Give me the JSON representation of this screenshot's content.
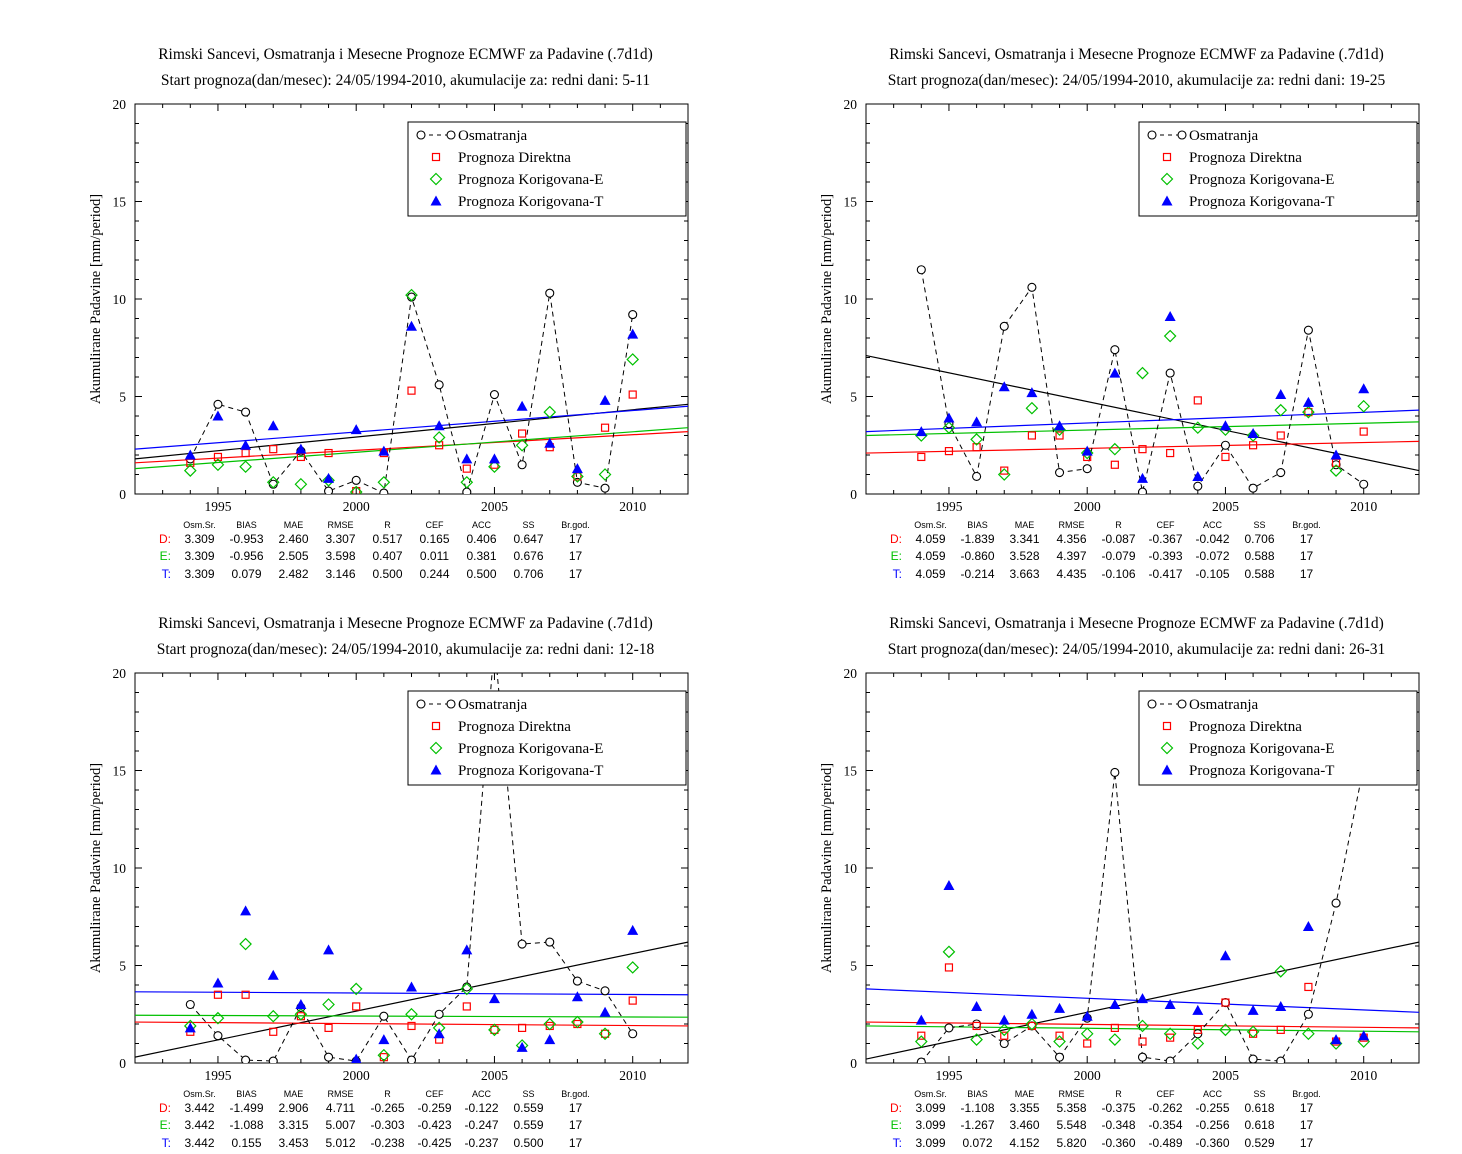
{
  "app": {
    "background": "#ffffff"
  },
  "palette": {
    "osmatranja": "#000000",
    "direktna": "#FF0000",
    "korigovana_e": "#00C000",
    "korigovana_t": "#0000FF"
  },
  "chart_data": [
    {
      "type": "scatter",
      "title": "Rimski Sancevi, Osmatranja i Mesecne Prognoze ECMWF za Padavine (.7d1d)",
      "subtitle": "Start prognoza(dan/mesec): 24/05/1994-2010, akumulacije za: redni dani: 5-11",
      "ylabel": "Akumulirane Padavine [mm/period]",
      "ylim": [
        0,
        20
      ],
      "xlim": [
        1992,
        2012
      ],
      "yticks": [
        0,
        5,
        10,
        15,
        20
      ],
      "xticks": [
        1995,
        2000,
        2005,
        2010
      ],
      "grid": false,
      "legend_position": "top-right-inside",
      "x": [
        1994,
        1995,
        1996,
        1997,
        1998,
        1999,
        2000,
        2001,
        2002,
        2003,
        2004,
        2005,
        2006,
        2007,
        2008,
        2009,
        2010
      ],
      "series": [
        {
          "name": "Osmatranja",
          "color": "#000000",
          "marker": "circle-open",
          "line": "dashed",
          "values": [
            1.8,
            4.6,
            4.2,
            0.5,
            2.2,
            0.15,
            0.7,
            0.05,
            10.1,
            5.6,
            0.1,
            5.1,
            1.5,
            10.3,
            0.6,
            0.3,
            9.2
          ]
        },
        {
          "name": "Prognoza Direktna",
          "color": "#FF0000",
          "marker": "square-open",
          "line": "none",
          "values": [
            1.6,
            1.9,
            2.1,
            2.3,
            1.9,
            2.1,
            0.15,
            2.1,
            5.3,
            2.5,
            1.3,
            1.5,
            3.1,
            2.4,
            0.9,
            3.4,
            5.1
          ]
        },
        {
          "name": "Prognoza Korigovana-E",
          "color": "#00C000",
          "marker": "diamond-open",
          "line": "none",
          "values": [
            1.2,
            1.5,
            1.4,
            0.6,
            0.5,
            0.7,
            0.1,
            0.6,
            10.2,
            2.9,
            0.6,
            1.4,
            2.5,
            4.2,
            0.9,
            1.0,
            6.9
          ]
        },
        {
          "name": "Prognoza Korigovana-T",
          "color": "#0000FF",
          "marker": "triangle-filled",
          "line": "none",
          "values": [
            2.0,
            4.0,
            2.5,
            3.5,
            2.3,
            0.8,
            3.3,
            2.2,
            8.6,
            3.5,
            1.8,
            1.8,
            4.5,
            2.6,
            1.3,
            4.8,
            8.2
          ]
        }
      ],
      "trend_lines": [
        {
          "name": "osmatranja-trend",
          "color": "#000000",
          "y_start": 1.8,
          "y_end": 4.6
        },
        {
          "name": "direktna-trend",
          "color": "#FF0000",
          "y_start": 1.6,
          "y_end": 3.2
        },
        {
          "name": "korigovana-e-trend",
          "color": "#00C000",
          "y_start": 1.3,
          "y_end": 3.4
        },
        {
          "name": "korigovana-t-trend",
          "color": "#0000FF",
          "y_start": 2.3,
          "y_end": 4.5
        }
      ],
      "stats": {
        "header": [
          "Osm.Sr.",
          "BIAS",
          "MAE",
          "RMSE",
          "R",
          "CEF",
          "ACC",
          "SS",
          "Br.god."
        ],
        "rows": [
          {
            "label": "D:",
            "color": "#FF0000",
            "values": [
              "3.309",
              "-0.953",
              "2.460",
              "3.307",
              "0.517",
              "0.165",
              "0.406",
              "0.647",
              "17"
            ]
          },
          {
            "label": "E:",
            "color": "#00C000",
            "values": [
              "3.309",
              "-0.956",
              "2.505",
              "3.598",
              "0.407",
              "0.011",
              "0.381",
              "0.676",
              "17"
            ]
          },
          {
            "label": "T:",
            "color": "#0000FF",
            "values": [
              "3.309",
              "0.079",
              "2.482",
              "3.146",
              "0.500",
              "0.244",
              "0.500",
              "0.706",
              "17"
            ]
          }
        ]
      }
    },
    {
      "type": "scatter",
      "title": "Rimski Sancevi, Osmatranja i Mesecne Prognoze ECMWF za Padavine (.7d1d)",
      "subtitle": "Start prognoza(dan/mesec): 24/05/1994-2010, akumulacije za: redni dani: 19-25",
      "ylabel": "Akumulirane Padavine [mm/period]",
      "ylim": [
        0,
        20
      ],
      "xlim": [
        1992,
        2012
      ],
      "yticks": [
        0,
        5,
        10,
        15,
        20
      ],
      "xticks": [
        1995,
        2000,
        2005,
        2010
      ],
      "grid": false,
      "legend_position": "top-right-inside",
      "x": [
        1994,
        1995,
        1996,
        1997,
        1998,
        1999,
        2000,
        2001,
        2002,
        2003,
        2004,
        2005,
        2006,
        2007,
        2008,
        2009,
        2010
      ],
      "series": [
        {
          "name": "Osmatranja",
          "color": "#000000",
          "marker": "circle-open",
          "line": "dashed",
          "values": [
            11.5,
            3.6,
            0.9,
            8.6,
            10.6,
            1.1,
            1.3,
            7.4,
            0.1,
            6.2,
            0.4,
            2.5,
            0.3,
            1.1,
            8.4,
            1.5,
            0.5
          ]
        },
        {
          "name": "Prognoza Direktna",
          "color": "#FF0000",
          "marker": "square-open",
          "line": "none",
          "values": [
            1.9,
            2.2,
            2.4,
            1.2,
            3.0,
            3.0,
            1.9,
            1.5,
            2.3,
            2.1,
            4.8,
            1.9,
            2.5,
            3.0,
            4.2,
            1.6,
            3.2
          ]
        },
        {
          "name": "Prognoza Korigovana-E",
          "color": "#00C000",
          "marker": "diamond-open",
          "line": "none",
          "values": [
            3.0,
            3.4,
            2.8,
            1.0,
            4.4,
            3.3,
            2.1,
            2.3,
            6.2,
            8.1,
            3.4,
            3.3,
            3.0,
            4.3,
            4.2,
            1.2,
            4.5
          ]
        },
        {
          "name": "Prognoza Korigovana-T",
          "color": "#0000FF",
          "marker": "triangle-filled",
          "line": "none",
          "values": [
            3.2,
            3.9,
            3.7,
            5.5,
            5.2,
            3.5,
            2.2,
            6.2,
            0.8,
            9.1,
            0.9,
            3.5,
            3.1,
            5.1,
            4.7,
            2.0,
            5.4
          ]
        }
      ],
      "trend_lines": [
        {
          "name": "osmatranja-trend",
          "color": "#000000",
          "y_start": 7.1,
          "y_end": 1.2
        },
        {
          "name": "direktna-trend",
          "color": "#FF0000",
          "y_start": 2.1,
          "y_end": 2.7
        },
        {
          "name": "korigovana-e-trend",
          "color": "#00C000",
          "y_start": 3.0,
          "y_end": 3.7
        },
        {
          "name": "korigovana-t-trend",
          "color": "#0000FF",
          "y_start": 3.2,
          "y_end": 4.3
        }
      ],
      "stats": {
        "header": [
          "Osm.Sr.",
          "BIAS",
          "MAE",
          "RMSE",
          "R",
          "CEF",
          "ACC",
          "SS",
          "Br.god."
        ],
        "rows": [
          {
            "label": "D:",
            "color": "#FF0000",
            "values": [
              "4.059",
              "-1.839",
              "3.341",
              "4.356",
              "-0.087",
              "-0.367",
              "-0.042",
              "0.706",
              "17"
            ]
          },
          {
            "label": "E:",
            "color": "#00C000",
            "values": [
              "4.059",
              "-0.860",
              "3.528",
              "4.397",
              "-0.079",
              "-0.393",
              "-0.072",
              "0.588",
              "17"
            ]
          },
          {
            "label": "T:",
            "color": "#0000FF",
            "values": [
              "4.059",
              "-0.214",
              "3.663",
              "4.435",
              "-0.106",
              "-0.417",
              "-0.105",
              "0.588",
              "17"
            ]
          }
        ]
      }
    },
    {
      "type": "scatter",
      "title": "Rimski Sancevi, Osmatranja i Mesecne Prognoze ECMWF za Padavine (.7d1d)",
      "subtitle": "Start prognoza(dan/mesec): 24/05/1994-2010, akumulacije za: redni dani: 12-18",
      "ylabel": "Akumulirane Padavine [mm/period]",
      "ylim": [
        0,
        20
      ],
      "xlim": [
        1992,
        2012
      ],
      "yticks": [
        0,
        5,
        10,
        15,
        20
      ],
      "xticks": [
        1995,
        2000,
        2005,
        2010
      ],
      "grid": false,
      "legend_position": "top-right-inside",
      "x": [
        1994,
        1995,
        1996,
        1997,
        1998,
        1999,
        2000,
        2001,
        2002,
        2003,
        2004,
        2005,
        2006,
        2007,
        2008,
        2009,
        2010
      ],
      "series": [
        {
          "name": "Osmatranja",
          "color": "#000000",
          "marker": "circle-open",
          "line": "dashed",
          "values": [
            3.0,
            1.4,
            0.15,
            0.1,
            2.85,
            0.3,
            0.1,
            2.4,
            0.15,
            2.5,
            3.9,
            21.5,
            6.1,
            6.2,
            4.2,
            3.7,
            1.5
          ]
        },
        {
          "name": "Prognoza Direktna",
          "color": "#FF0000",
          "marker": "square-open",
          "line": "none",
          "values": [
            1.6,
            3.5,
            3.5,
            1.6,
            2.4,
            1.8,
            2.9,
            0.3,
            1.9,
            1.2,
            2.9,
            1.7,
            1.8,
            1.9,
            2.0,
            1.5,
            3.2
          ]
        },
        {
          "name": "Prognoza Korigovana-E",
          "color": "#00C000",
          "marker": "diamond-open",
          "line": "none",
          "values": [
            1.9,
            2.3,
            6.1,
            2.4,
            2.5,
            3.0,
            3.8,
            0.4,
            2.5,
            1.8,
            3.8,
            1.7,
            0.9,
            2.0,
            2.1,
            1.5,
            4.9
          ]
        },
        {
          "name": "Prognoza Korigovana-T",
          "color": "#0000FF",
          "marker": "triangle-filled",
          "line": "none",
          "values": [
            1.8,
            4.1,
            7.8,
            4.5,
            3.0,
            5.8,
            0.2,
            1.2,
            3.9,
            1.5,
            5.8,
            3.3,
            0.8,
            1.2,
            3.4,
            2.6,
            6.8
          ]
        }
      ],
      "trend_lines": [
        {
          "name": "osmatranja-trend",
          "color": "#000000",
          "y_start": 0.3,
          "y_end": 6.2
        },
        {
          "name": "direktna-trend",
          "color": "#FF0000",
          "y_start": 2.1,
          "y_end": 1.9
        },
        {
          "name": "korigovana-e-trend",
          "color": "#00C000",
          "y_start": 2.45,
          "y_end": 2.35
        },
        {
          "name": "korigovana-t-trend",
          "color": "#0000FF",
          "y_start": 3.65,
          "y_end": 3.5
        }
      ],
      "stats": {
        "header": [
          "Osm.Sr.",
          "BIAS",
          "MAE",
          "RMSE",
          "R",
          "CEF",
          "ACC",
          "SS",
          "Br.god."
        ],
        "rows": [
          {
            "label": "D:",
            "color": "#FF0000",
            "values": [
              "3.442",
              "-1.499",
              "2.906",
              "4.711",
              "-0.265",
              "-0.259",
              "-0.122",
              "0.559",
              "17"
            ]
          },
          {
            "label": "E:",
            "color": "#00C000",
            "values": [
              "3.442",
              "-1.088",
              "3.315",
              "5.007",
              "-0.303",
              "-0.423",
              "-0.247",
              "0.559",
              "17"
            ]
          },
          {
            "label": "T:",
            "color": "#0000FF",
            "values": [
              "3.442",
              "0.155",
              "3.453",
              "5.012",
              "-0.238",
              "-0.425",
              "-0.237",
              "0.500",
              "17"
            ]
          }
        ]
      }
    },
    {
      "type": "scatter",
      "title": "Rimski Sancevi, Osmatranja i Mesecne Prognoze ECMWF za Padavine (.7d1d)",
      "subtitle": "Start prognoza(dan/mesec): 24/05/1994-2010, akumulacije za: redni dani: 26-31",
      "ylabel": "Akumulirane Padavine [mm/period]",
      "ylim": [
        0,
        20
      ],
      "xlim": [
        1992,
        2012
      ],
      "yticks": [
        0,
        5,
        10,
        15,
        20
      ],
      "xticks": [
        1995,
        2000,
        2005,
        2010
      ],
      "grid": false,
      "legend_position": "top-right-inside",
      "x": [
        1994,
        1995,
        1996,
        1997,
        1998,
        1999,
        2000,
        2001,
        2002,
        2003,
        2004,
        2005,
        2006,
        2007,
        2008,
        2009,
        2010
      ],
      "series": [
        {
          "name": "Osmatranja",
          "color": "#000000",
          "marker": "circle-open",
          "line": "dashed",
          "values": [
            0.05,
            1.8,
            2.0,
            1.0,
            1.9,
            0.3,
            2.3,
            14.9,
            0.3,
            0.1,
            1.5,
            3.1,
            0.2,
            0.1,
            2.5,
            8.2,
            15.2
          ]
        },
        {
          "name": "Prognoza Direktna",
          "color": "#FF0000",
          "marker": "square-open",
          "line": "none",
          "values": [
            1.4,
            4.9,
            1.9,
            1.4,
            1.9,
            1.4,
            1.0,
            1.8,
            1.1,
            1.3,
            1.7,
            3.1,
            1.5,
            1.7,
            3.9,
            1.1,
            1.3
          ]
        },
        {
          "name": "Prognoza Korigovana-E",
          "color": "#00C000",
          "marker": "diamond-open",
          "line": "none",
          "values": [
            1.1,
            5.7,
            1.2,
            1.7,
            2.0,
            1.1,
            1.5,
            1.2,
            1.9,
            1.5,
            1.0,
            1.7,
            1.6,
            4.7,
            1.5,
            1.0,
            1.1
          ]
        },
        {
          "name": "Prognoza Korigovana-T",
          "color": "#0000FF",
          "marker": "triangle-filled",
          "line": "none",
          "values": [
            2.2,
            9.1,
            2.9,
            2.2,
            2.5,
            2.8,
            2.4,
            3.0,
            3.3,
            3.0,
            2.7,
            5.5,
            2.7,
            2.9,
            7.0,
            1.2,
            1.4
          ]
        }
      ],
      "trend_lines": [
        {
          "name": "osmatranja-trend",
          "color": "#000000",
          "y_start": 0.2,
          "y_end": 6.2
        },
        {
          "name": "direktna-trend",
          "color": "#FF0000",
          "y_start": 2.1,
          "y_end": 1.8
        },
        {
          "name": "korigovana-e-trend",
          "color": "#00C000",
          "y_start": 1.9,
          "y_end": 1.6
        },
        {
          "name": "korigovana-t-trend",
          "color": "#0000FF",
          "y_start": 3.8,
          "y_end": 2.6
        }
      ],
      "stats": {
        "header": [
          "Osm.Sr.",
          "BIAS",
          "MAE",
          "RMSE",
          "R",
          "CEF",
          "ACC",
          "SS",
          "Br.god."
        ],
        "rows": [
          {
            "label": "D:",
            "color": "#FF0000",
            "values": [
              "3.099",
              "-1.108",
              "3.355",
              "5.358",
              "-0.375",
              "-0.262",
              "-0.255",
              "0.618",
              "17"
            ]
          },
          {
            "label": "E:",
            "color": "#00C000",
            "values": [
              "3.099",
              "-1.267",
              "3.460",
              "5.548",
              "-0.348",
              "-0.354",
              "-0.256",
              "0.618",
              "17"
            ]
          },
          {
            "label": "T:",
            "color": "#0000FF",
            "values": [
              "3.099",
              "0.072",
              "4.152",
              "5.820",
              "-0.360",
              "-0.489",
              "-0.360",
              "0.529",
              "17"
            ]
          }
        ]
      }
    }
  ]
}
